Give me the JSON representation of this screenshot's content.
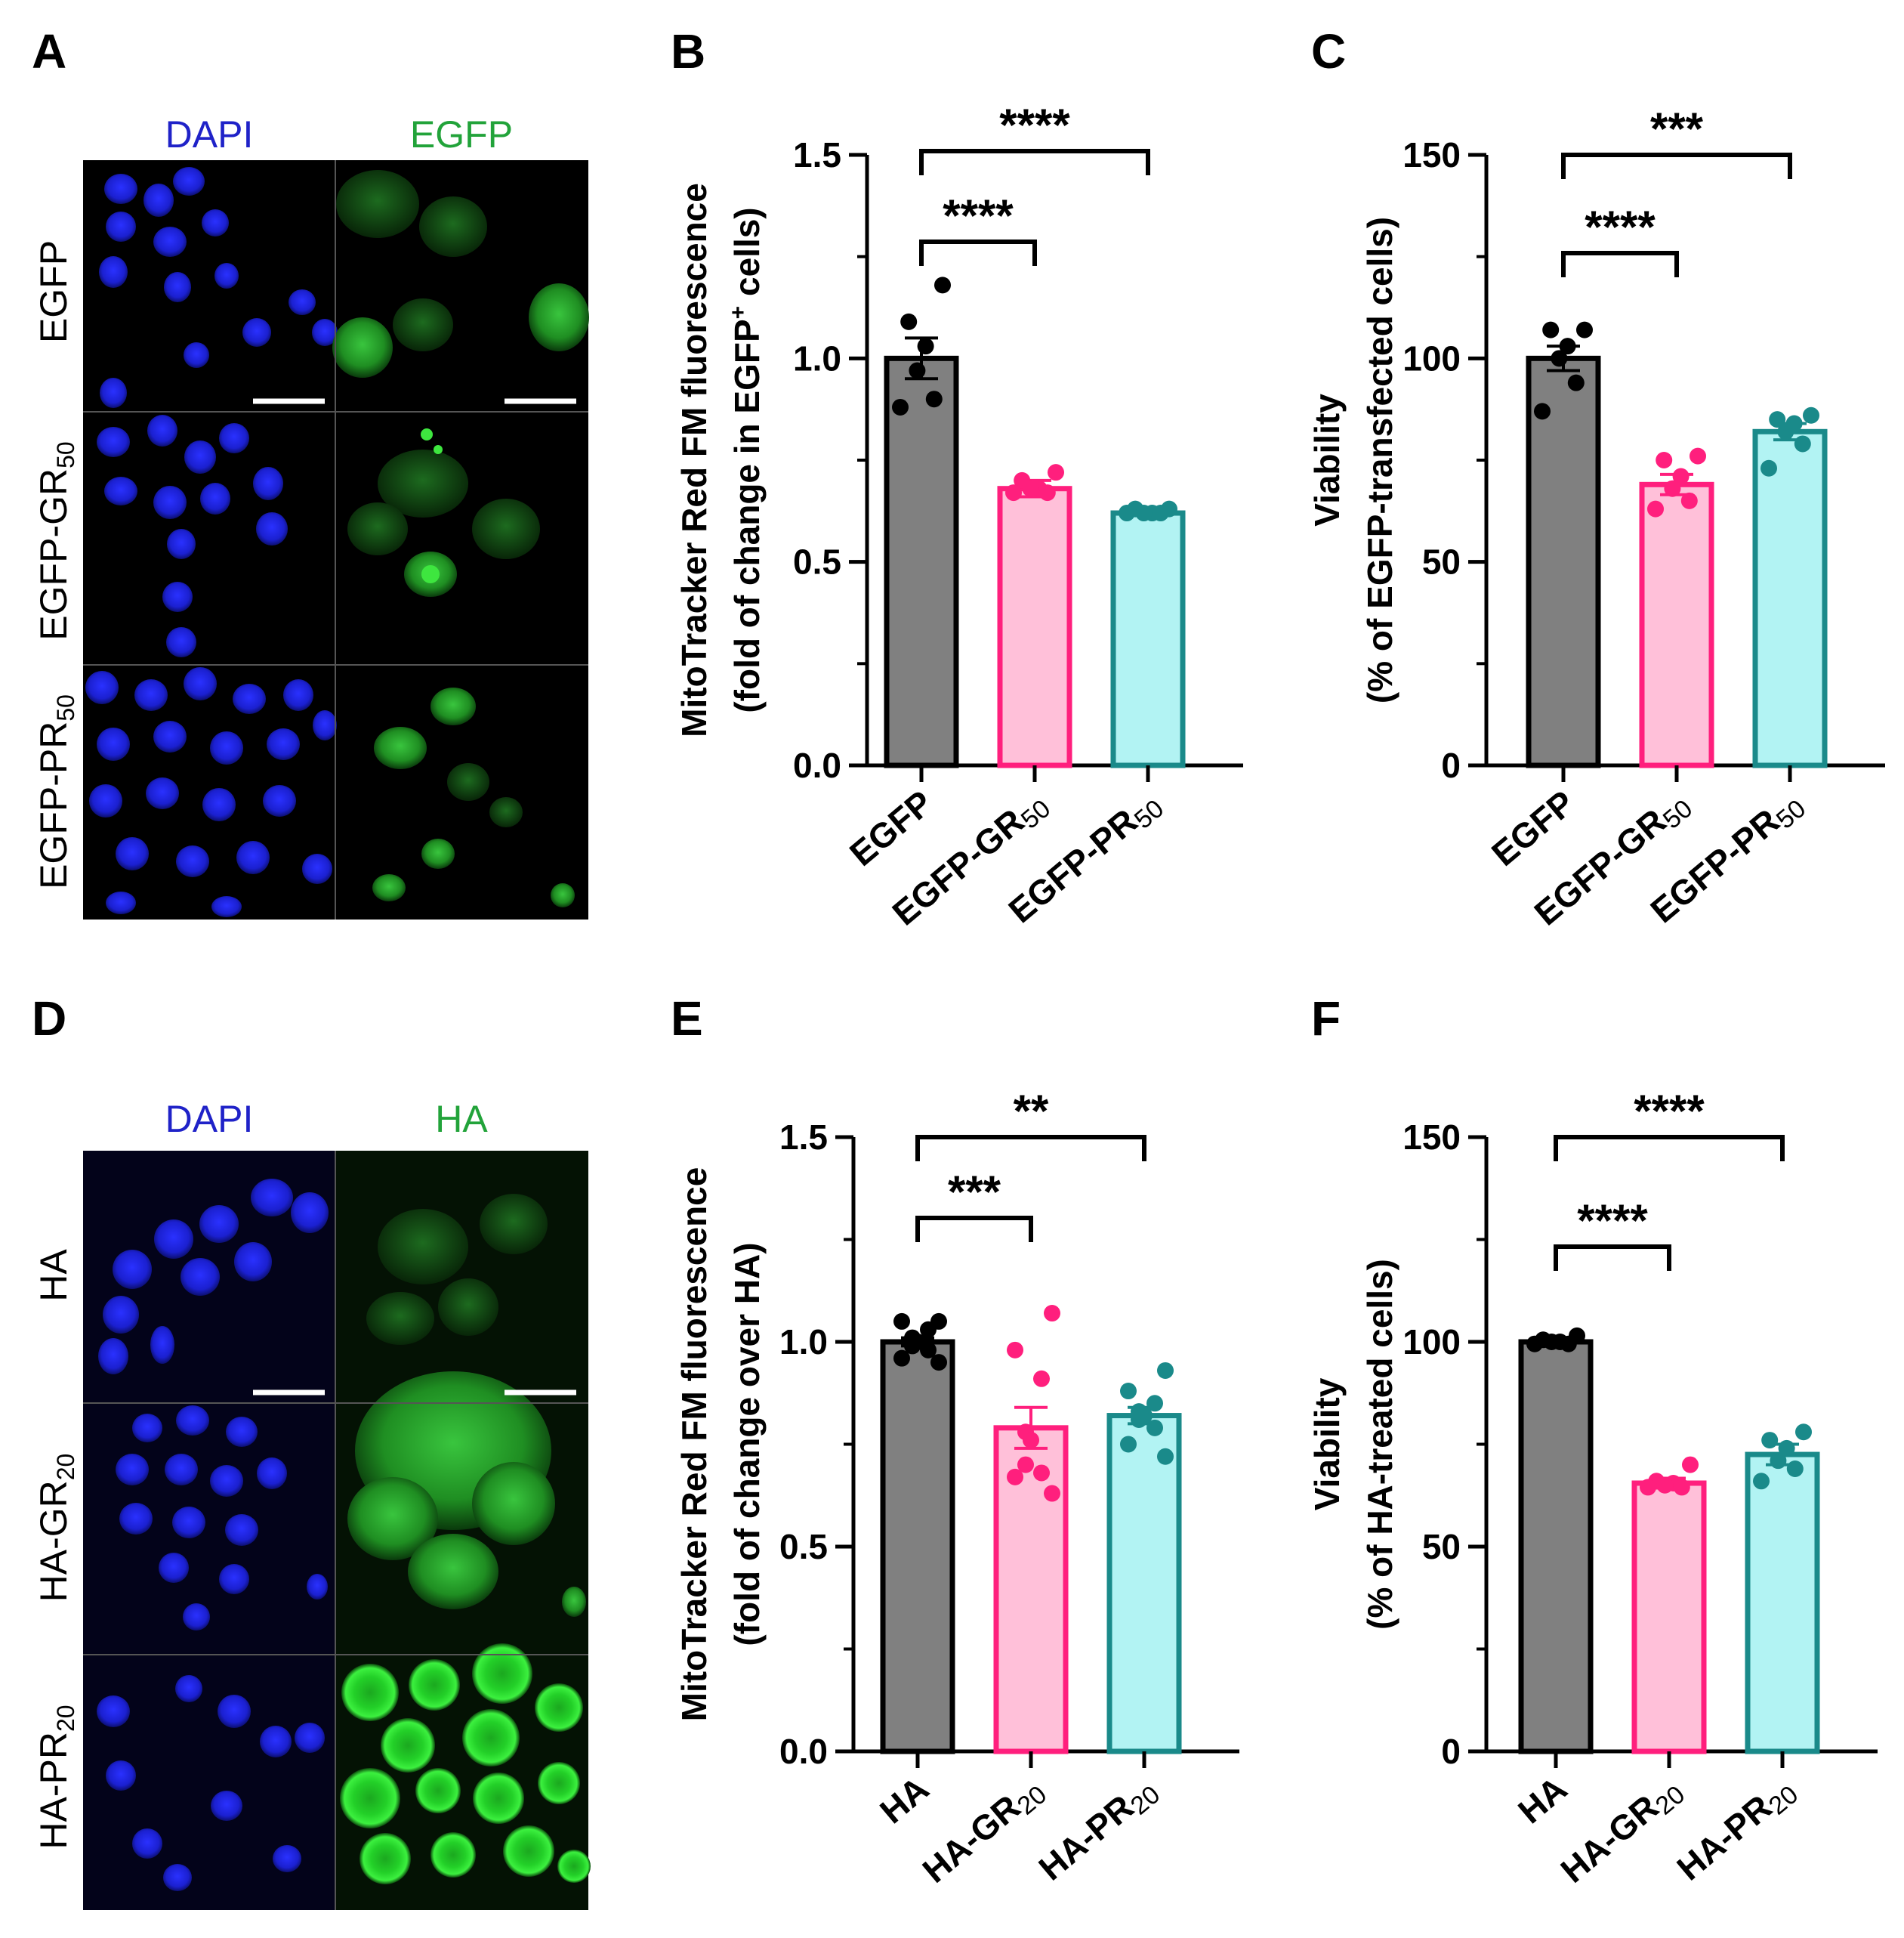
{
  "panel_letters": [
    "A",
    "B",
    "C",
    "D",
    "E",
    "F"
  ],
  "panel_A": {
    "column_headers": [
      "DAPI",
      "EGFP"
    ],
    "row_labels": [
      {
        "main": "EGFP",
        "sub": ""
      },
      {
        "main": "EGFP-GR",
        "sub": "50"
      },
      {
        "main": "EGFP-PR",
        "sub": "50"
      }
    ],
    "colors": {
      "dapi": "#1f22c8",
      "egfp": "#22a33a"
    }
  },
  "panel_D": {
    "column_headers": [
      "DAPI",
      "HA"
    ],
    "row_labels": [
      {
        "main": "HA",
        "sub": ""
      },
      {
        "main": "HA-GR",
        "sub": "20"
      },
      {
        "main": "HA-PR",
        "sub": "20"
      }
    ],
    "colors": {
      "dapi": "#1f22c8",
      "ha": "#22a33a"
    }
  },
  "chart_data": [
    {
      "panel": "B",
      "type": "bar",
      "ylabel_line1": "MitoTracker Red FM fluorescence",
      "ylabel_line2_parts": [
        "(fold of change in EGFP",
        "+",
        " cells)"
      ],
      "ylim": [
        0,
        1.5
      ],
      "yticks": [
        "0.0",
        "0.5",
        "1.0",
        "1.5"
      ],
      "categories": [
        {
          "main": "EGFP",
          "sub": ""
        },
        {
          "main": "EGFP-GR",
          "sub": "50"
        },
        {
          "main": "EGFP-PR",
          "sub": "50"
        }
      ],
      "values": [
        1.0,
        0.68,
        0.62
      ],
      "sem": [
        0.05,
        0.02,
        0.005
      ],
      "points": [
        [
          1.18,
          1.09,
          1.03,
          0.97,
          0.9,
          0.88
        ],
        [
          0.72,
          0.7,
          0.68,
          0.68,
          0.67,
          0.67
        ],
        [
          0.63,
          0.63,
          0.62,
          0.62,
          0.62,
          0.62
        ]
      ],
      "fills": [
        "#808080",
        "#ffc0d9",
        "#b2f3f3"
      ],
      "strokes": [
        "#000000",
        "#ff1f7d",
        "#1a8a8a"
      ],
      "dot_colors": [
        "#000000",
        "#ff1f7d",
        "#1a8a8a"
      ],
      "comparisons": [
        {
          "from": 0,
          "to": 1,
          "label": "****"
        },
        {
          "from": 0,
          "to": 2,
          "label": "****"
        }
      ]
    },
    {
      "panel": "C",
      "type": "bar",
      "ylabel_line1": "Viability",
      "ylabel_line2_parts": [
        "(% of EGFP-transfected cells)"
      ],
      "ylim": [
        0,
        150
      ],
      "yticks": [
        "0",
        "50",
        "100",
        "150"
      ],
      "categories": [
        {
          "main": "EGFP",
          "sub": ""
        },
        {
          "main": "EGFP-GR",
          "sub": "50"
        },
        {
          "main": "EGFP-PR",
          "sub": "50"
        }
      ],
      "values": [
        100,
        69,
        82
      ],
      "sem": [
        3,
        2.5,
        2
      ],
      "points": [
        [
          107,
          107,
          103,
          100,
          94,
          87
        ],
        [
          76,
          75,
          71,
          68,
          65,
          63
        ],
        [
          86,
          85,
          84,
          82,
          79,
          73
        ]
      ],
      "fills": [
        "#808080",
        "#ffc0d9",
        "#b2f3f3"
      ],
      "strokes": [
        "#000000",
        "#ff1f7d",
        "#1a8a8a"
      ],
      "dot_colors": [
        "#000000",
        "#ff1f7d",
        "#1a8a8a"
      ],
      "comparisons": [
        {
          "from": 0,
          "to": 1,
          "label": "****"
        },
        {
          "from": 0,
          "to": 2,
          "label": "***"
        }
      ]
    },
    {
      "panel": "E",
      "type": "bar",
      "ylabel_line1": "MitoTracker Red FM fluorescence",
      "ylabel_line2_parts": [
        "(fold of change over HA)"
      ],
      "ylim": [
        0,
        1.5
      ],
      "yticks": [
        "0.0",
        "0.5",
        "1.0",
        "1.5"
      ],
      "categories": [
        {
          "main": "HA",
          "sub": ""
        },
        {
          "main": "HA-GR",
          "sub": "20"
        },
        {
          "main": "HA-PR",
          "sub": "20"
        }
      ],
      "values": [
        1.0,
        0.79,
        0.82
      ],
      "sem": [
        0.01,
        0.05,
        0.02
      ],
      "points": [
        [
          1.05,
          1.05,
          1.03,
          1.01,
          1.0,
          0.99,
          0.98,
          0.96,
          0.95
        ],
        [
          1.07,
          0.98,
          0.91,
          0.78,
          0.76,
          0.7,
          0.68,
          0.67,
          0.63
        ],
        [
          0.93,
          0.88,
          0.85,
          0.83,
          0.82,
          0.81,
          0.79,
          0.75,
          0.72
        ]
      ],
      "fills": [
        "#808080",
        "#ffc0d9",
        "#b2f3f3"
      ],
      "strokes": [
        "#000000",
        "#ff1f7d",
        "#1a8a8a"
      ],
      "dot_colors": [
        "#000000",
        "#ff1f7d",
        "#1a8a8a"
      ],
      "comparisons": [
        {
          "from": 0,
          "to": 1,
          "label": "***"
        },
        {
          "from": 0,
          "to": 2,
          "label": "**"
        }
      ]
    },
    {
      "panel": "F",
      "type": "bar",
      "ylabel_line1": "Viability",
      "ylabel_line2_parts": [
        "(% of HA-treated cells)"
      ],
      "ylim": [
        0,
        150
      ],
      "yticks": [
        "0",
        "50",
        "100",
        "150"
      ],
      "categories": [
        {
          "main": "HA",
          "sub": ""
        },
        {
          "main": "HA-GR",
          "sub": "20"
        },
        {
          "main": "HA-PR",
          "sub": "20"
        }
      ],
      "values": [
        100,
        65.5,
        72.5
      ],
      "sem": [
        0.4,
        1.2,
        2.5
      ],
      "points": [
        [
          101.5,
          100.5,
          100,
          100,
          99.5,
          99.5
        ],
        [
          70,
          66,
          65.5,
          65,
          64.5,
          64.5
        ],
        [
          78,
          76,
          74,
          71,
          69,
          66
        ]
      ],
      "fills": [
        "#808080",
        "#ffc0d9",
        "#b2f3f3"
      ],
      "strokes": [
        "#000000",
        "#ff1f7d",
        "#1a8a8a"
      ],
      "dot_colors": [
        "#000000",
        "#ff1f7d",
        "#1a8a8a"
      ],
      "comparisons": [
        {
          "from": 0,
          "to": 1,
          "label": "****"
        },
        {
          "from": 0,
          "to": 2,
          "label": "****"
        }
      ]
    }
  ]
}
